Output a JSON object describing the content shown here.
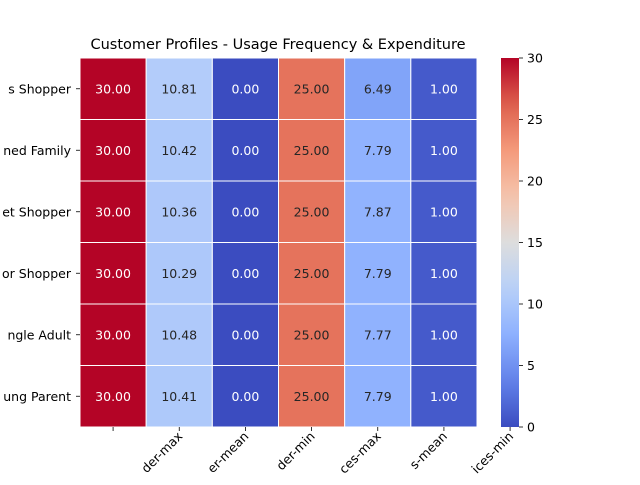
{
  "chart_data": {
    "type": "heatmap",
    "title": "Customer Profiles - Usage Frequency & Expenditure",
    "xlabel": "",
    "ylabel": "",
    "row_labels": [
      "s Shopper",
      "ned Family",
      "et Shopper",
      "or Shopper",
      "ngle Adult",
      "ung Parent"
    ],
    "col_labels": [
      "",
      "der-max",
      "er-mean",
      "der-min",
      "ces-max",
      "s-mean",
      "ices-min"
    ],
    "values": [
      [
        30.0,
        10.81,
        0.0,
        25.0,
        6.49,
        1.0
      ],
      [
        30.0,
        10.42,
        0.0,
        25.0,
        7.79,
        1.0
      ],
      [
        30.0,
        10.36,
        0.0,
        25.0,
        7.87,
        1.0
      ],
      [
        30.0,
        10.29,
        0.0,
        25.0,
        7.79,
        1.0
      ],
      [
        30.0,
        10.48,
        0.0,
        25.0,
        7.77,
        1.0
      ],
      [
        30.0,
        10.41,
        0.0,
        25.0,
        7.79,
        1.0
      ]
    ],
    "value_format": "0.00",
    "colormap": "coolwarm",
    "vmin": 0,
    "vmax": 30,
    "colorbar_ticks": [
      0,
      5,
      10,
      15,
      20,
      25,
      30
    ],
    "grid_line_color": "#ffffff"
  }
}
